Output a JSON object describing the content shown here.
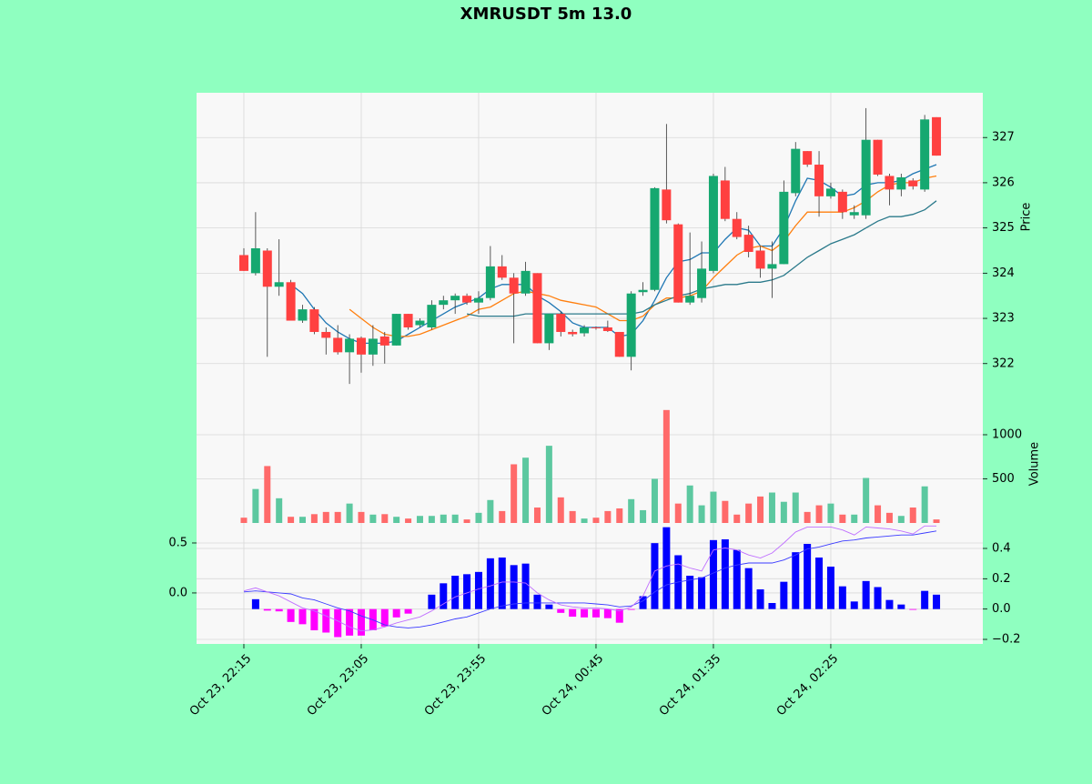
{
  "chart_data": [
    {
      "type": "candlestick",
      "title": "XMRUSDT 5m 13.0",
      "ylabel": "Price",
      "color_up": "#16a870",
      "color_down": "#ff4040",
      "xlim": [
        -4.03,
        62.95
      ],
      "ylim": [
        321.09,
        327.99
      ],
      "yticks": [
        322,
        323,
        324,
        325,
        326,
        327
      ],
      "grid": true,
      "open": [
        324.4,
        324.0,
        324.5,
        323.7,
        323.8,
        322.95,
        323.2,
        322.7,
        322.57,
        322.25,
        322.57,
        322.2,
        322.6,
        322.4,
        323.1,
        322.85,
        322.8,
        323.3,
        323.4,
        323.5,
        323.35,
        323.45,
        324.15,
        323.9,
        323.55,
        324.0,
        322.45,
        323.1,
        322.7,
        322.67,
        322.8,
        322.8,
        322.7,
        322.15,
        323.58,
        323.63,
        325.85,
        325.08,
        323.35,
        323.45,
        324.05,
        326.05,
        325.2,
        324.85,
        324.5,
        324.1,
        324.2,
        325.77,
        326.7,
        326.4,
        325.7,
        325.8,
        325.28,
        325.28,
        326.95,
        326.15,
        325.85,
        326.05,
        325.85,
        327.45
      ],
      "high": [
        324.55,
        325.35,
        324.55,
        324.75,
        323.85,
        323.3,
        323.25,
        322.8,
        322.85,
        322.65,
        322.6,
        322.85,
        322.7,
        323.1,
        323.1,
        323.0,
        323.4,
        323.5,
        323.55,
        323.55,
        323.6,
        324.6,
        324.4,
        324.0,
        324.25,
        324.0,
        323.1,
        323.15,
        322.75,
        322.85,
        322.82,
        322.95,
        322.7,
        323.6,
        323.8,
        325.9,
        327.3,
        325.1,
        324.9,
        324.7,
        326.2,
        326.35,
        325.35,
        325.05,
        324.6,
        324.7,
        326.05,
        326.9,
        326.7,
        326.7,
        326.0,
        325.85,
        325.5,
        327.65,
        326.95,
        326.2,
        326.2,
        326.1,
        327.5,
        327.45
      ],
      "low": [
        324.05,
        323.95,
        322.15,
        323.5,
        322.95,
        322.9,
        322.65,
        322.2,
        322.2,
        321.55,
        321.8,
        321.95,
        322.0,
        322.4,
        322.75,
        322.8,
        322.75,
        323.2,
        323.1,
        323.3,
        323.1,
        323.4,
        323.85,
        322.45,
        323.5,
        322.45,
        322.3,
        322.6,
        322.6,
        322.6,
        322.75,
        322.7,
        322.15,
        321.85,
        323.5,
        323.6,
        325.1,
        323.35,
        323.3,
        323.35,
        324.0,
        325.15,
        324.75,
        324.35,
        323.9,
        323.45,
        324.2,
        325.7,
        326.35,
        325.25,
        325.65,
        325.2,
        325.2,
        325.2,
        326.15,
        325.5,
        325.7,
        325.85,
        325.8,
        326.6
      ],
      "close": [
        324.05,
        324.55,
        323.7,
        323.8,
        322.95,
        323.2,
        322.7,
        322.57,
        322.25,
        322.55,
        322.2,
        322.55,
        322.4,
        323.1,
        322.8,
        322.95,
        323.3,
        323.4,
        323.5,
        323.35,
        323.45,
        324.15,
        323.9,
        323.55,
        324.05,
        322.45,
        323.1,
        322.7,
        322.65,
        322.8,
        322.78,
        322.72,
        322.15,
        323.55,
        323.63,
        325.88,
        325.17,
        323.35,
        323.5,
        324.1,
        326.15,
        325.2,
        324.8,
        324.47,
        324.1,
        324.2,
        325.8,
        326.75,
        326.4,
        325.7,
        325.87,
        325.35,
        325.35,
        326.95,
        326.18,
        325.85,
        326.12,
        325.92,
        327.4,
        326.6
      ],
      "lines": [
        {
          "color": "#1f77b4",
          "values": [
            null,
            null,
            null,
            null,
            323.75,
            323.55,
            323.2,
            322.9,
            322.7,
            322.55,
            322.45,
            322.45,
            322.45,
            322.5,
            322.65,
            322.8,
            322.95,
            323.1,
            323.25,
            323.35,
            323.45,
            323.65,
            323.75,
            323.75,
            323.75,
            323.5,
            323.35,
            323.15,
            322.9,
            322.8,
            322.8,
            322.8,
            322.6,
            322.65,
            322.95,
            323.4,
            323.9,
            324.25,
            324.3,
            324.45,
            324.45,
            324.75,
            325.0,
            324.95,
            324.6,
            324.6,
            325.0,
            325.6,
            326.1,
            326.05,
            325.9,
            325.7,
            325.75,
            325.95,
            326.0,
            326.0,
            326.05,
            326.2,
            326.3,
            326.4
          ]
        },
        {
          "color": "#ff7f0e",
          "values": [
            null,
            null,
            null,
            null,
            null,
            null,
            null,
            null,
            null,
            323.2,
            323.0,
            322.8,
            322.65,
            322.6,
            322.6,
            322.65,
            322.75,
            322.85,
            322.95,
            323.05,
            323.2,
            323.25,
            323.4,
            323.55,
            323.6,
            323.55,
            323.5,
            323.4,
            323.35,
            323.3,
            323.25,
            323.1,
            322.95,
            322.95,
            323.05,
            323.3,
            323.45,
            323.45,
            323.5,
            323.6,
            323.9,
            324.15,
            324.4,
            324.55,
            324.6,
            324.5,
            324.7,
            325.05,
            325.35,
            325.35,
            325.35,
            325.35,
            325.45,
            325.6,
            325.8,
            325.95,
            326.0,
            326.0,
            326.1,
            326.15
          ]
        },
        {
          "color": "#2b7a8b",
          "values": [
            null,
            null,
            null,
            null,
            null,
            null,
            null,
            null,
            null,
            null,
            null,
            null,
            null,
            null,
            null,
            null,
            null,
            null,
            null,
            323.1,
            323.05,
            323.05,
            323.05,
            323.05,
            323.1,
            323.1,
            323.1,
            323.1,
            323.1,
            323.1,
            323.1,
            323.1,
            323.1,
            323.1,
            323.15,
            323.3,
            323.4,
            323.5,
            323.55,
            323.65,
            323.7,
            323.75,
            323.75,
            323.8,
            323.8,
            323.85,
            323.95,
            324.15,
            324.35,
            324.5,
            324.65,
            324.75,
            324.85,
            325.0,
            325.15,
            325.25,
            325.25,
            325.3,
            325.4,
            325.6
          ]
        }
      ]
    },
    {
      "type": "volume",
      "ylabel": "Volume",
      "color_up": "#5cc8a0",
      "color_down": "#ff6a6a",
      "xlim": [
        -4.03,
        62.95
      ],
      "ylim": [
        0,
        1340
      ],
      "yticks": [
        500,
        1000
      ],
      "grid": true,
      "values": [
        60,
        385,
        645,
        280,
        70,
        70,
        100,
        125,
        125,
        220,
        125,
        95,
        100,
        70,
        50,
        80,
        80,
        95,
        95,
        40,
        115,
        260,
        135,
        665,
        740,
        175,
        875,
        290,
        135,
        50,
        60,
        135,
        165,
        270,
        145,
        500,
        1280,
        220,
        425,
        200,
        355,
        250,
        95,
        220,
        300,
        345,
        240,
        345,
        125,
        200,
        220,
        95,
        95,
        510,
        200,
        115,
        80,
        175,
        415,
        40
      ]
    },
    {
      "type": "macd",
      "xlim": [
        -4.03,
        62.95
      ],
      "ylim": [
        -0.51,
        0.7
      ],
      "y2lim": [
        -0.23,
        0.568
      ],
      "yticks": [
        {
          "value": 0,
          "label": "0.0"
        },
        0.5
      ],
      "y2ticks": [
        {
          "value": -0.2,
          "label": "−0.2"
        },
        {
          "value": 0,
          "label": "0.0"
        },
        0.2,
        0.4
      ],
      "xticks": [
        {
          "value": 0,
          "label": "Oct 23, 22:15"
        },
        {
          "value": 10,
          "label": "Oct 23, 23:05"
        },
        {
          "value": 20,
          "label": "Oct 23, 23:55"
        },
        {
          "value": 30,
          "label": "Oct 24, 00:45"
        },
        {
          "value": 40,
          "label": "Oct 24, 01:35"
        },
        {
          "value": 50,
          "label": "Oct 24, 02:25"
        }
      ],
      "grid": true,
      "color_up": "#0000ff",
      "color_down": "#ff00ff",
      "histogram": {
        "axis": "y2",
        "values": [
          0,
          0.065,
          -0.01,
          -0.015,
          -0.085,
          -0.1,
          -0.14,
          -0.155,
          -0.185,
          -0.175,
          -0.175,
          -0.14,
          -0.115,
          -0.055,
          -0.03,
          0,
          0.095,
          0.17,
          0.22,
          0.23,
          0.245,
          0.335,
          0.34,
          0.29,
          0.3,
          0.095,
          0.03,
          -0.025,
          -0.05,
          -0.055,
          -0.055,
          -0.06,
          -0.09,
          -0.005,
          0.085,
          0.435,
          0.54,
          0.355,
          0.22,
          0.21,
          0.455,
          0.46,
          0.39,
          0.27,
          0.13,
          0.04,
          0.18,
          0.375,
          0.43,
          0.34,
          0.28,
          0.15,
          0.05,
          0.185,
          0.145,
          0.06,
          0.03,
          -0.005,
          0.12,
          0.095
        ]
      },
      "lines": [
        {
          "color": "#3a3aff",
          "values": [
            0.01,
            0.02,
            0.01,
            0,
            -0.01,
            -0.05,
            -0.07,
            -0.11,
            -0.15,
            -0.18,
            -0.23,
            -0.27,
            -0.32,
            -0.34,
            -0.35,
            -0.34,
            -0.32,
            -0.29,
            -0.26,
            -0.24,
            -0.2,
            -0.16,
            -0.13,
            -0.11,
            -0.1,
            -0.1,
            -0.1,
            -0.1,
            -0.1,
            -0.1,
            -0.11,
            -0.12,
            -0.14,
            -0.13,
            -0.08,
            0.01,
            0.08,
            0.11,
            0.13,
            0.15,
            0.2,
            0.25,
            0.28,
            0.3,
            0.3,
            0.3,
            0.33,
            0.38,
            0.44,
            0.46,
            0.49,
            0.52,
            0.53,
            0.55,
            0.56,
            0.57,
            0.58,
            0.58,
            0.6,
            0.62
          ]
        },
        {
          "color": "#c070ff",
          "values": [
            0.02,
            0.05,
            0.01,
            -0.03,
            -0.09,
            -0.15,
            -0.18,
            -0.23,
            -0.28,
            -0.34,
            -0.38,
            -0.37,
            -0.34,
            -0.3,
            -0.27,
            -0.24,
            -0.18,
            -0.11,
            -0.04,
            0,
            0.04,
            0.07,
            0.11,
            0.11,
            0.1,
            0,
            -0.07,
            -0.12,
            -0.14,
            -0.15,
            -0.15,
            -0.16,
            -0.18,
            -0.14,
            -0.03,
            0.22,
            0.27,
            0.29,
            0.25,
            0.22,
            0.43,
            0.45,
            0.43,
            0.38,
            0.35,
            0.4,
            0.5,
            0.61,
            0.66,
            0.66,
            0.66,
            0.63,
            0.58,
            0.66,
            0.65,
            0.64,
            0.62,
            0.59,
            0.67,
            0.67
          ]
        }
      ]
    }
  ]
}
